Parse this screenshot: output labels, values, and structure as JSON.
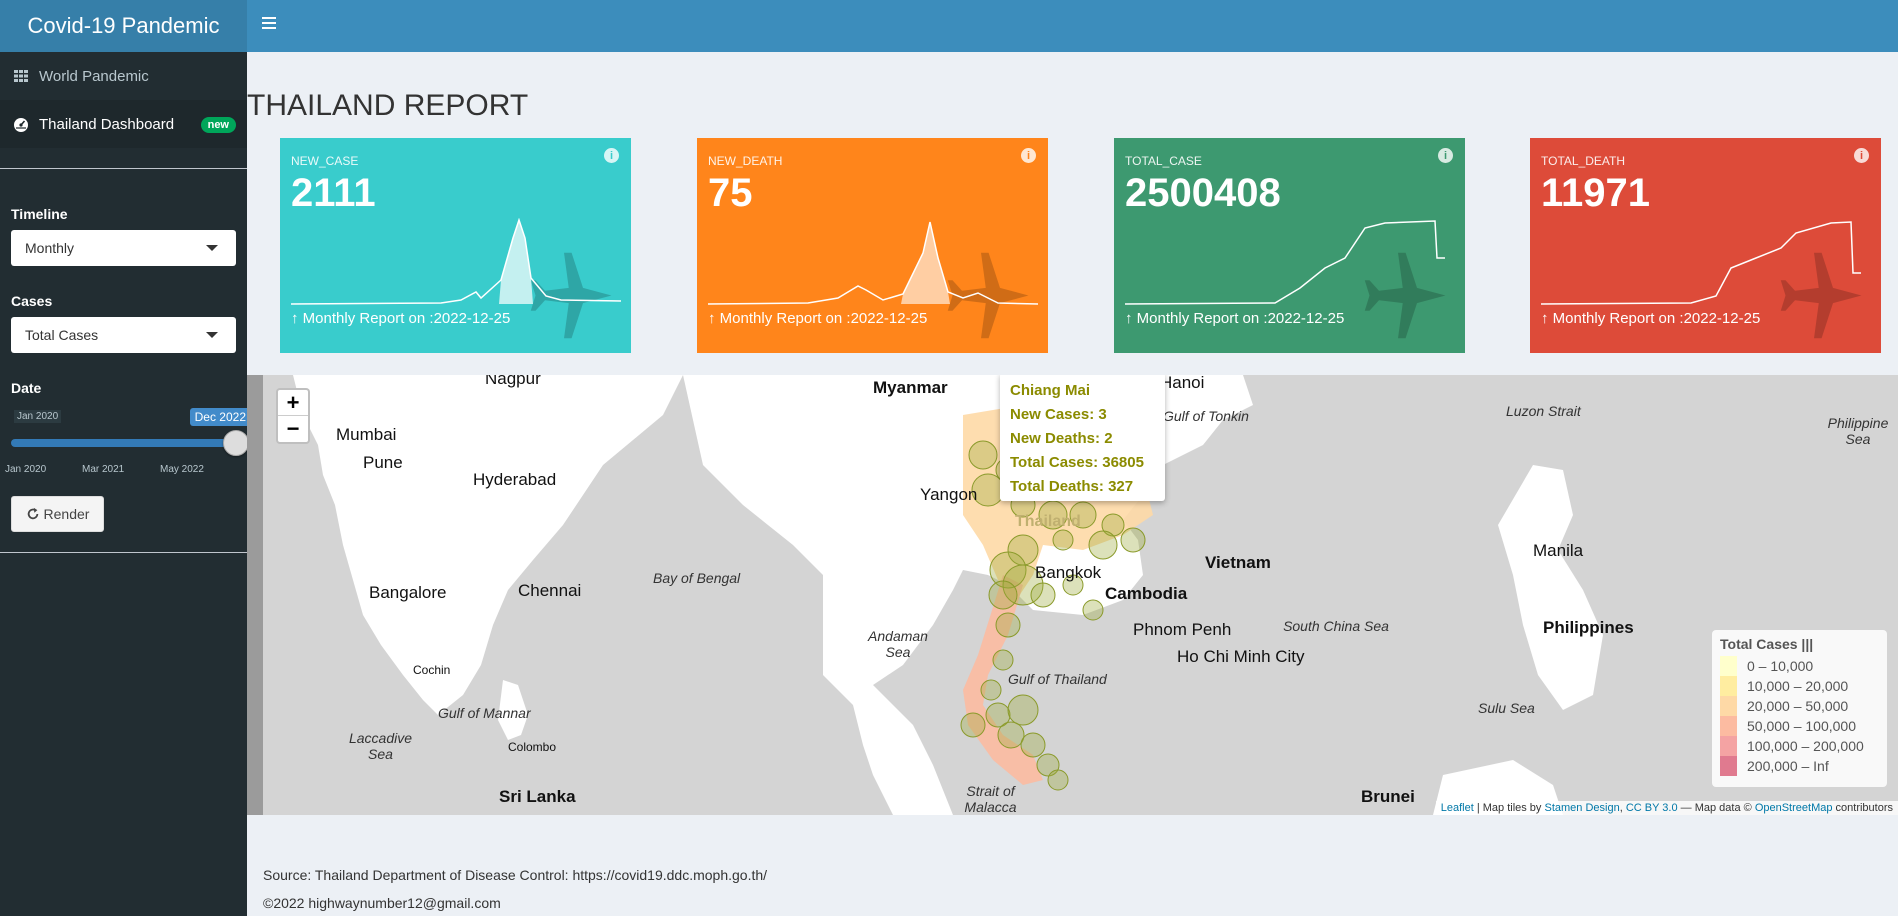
{
  "app": {
    "title": "Covid-19 Pandemic"
  },
  "sidebar": {
    "items": [
      {
        "label": "World Pandemic",
        "icon": "grid-icon"
      },
      {
        "label": "Thailand Dashboard",
        "icon": "dashboard-icon",
        "badge": "new"
      }
    ],
    "timeline": {
      "label": "Timeline",
      "value": "Monthly"
    },
    "cases": {
      "label": "Cases",
      "value": "Total Cases"
    },
    "date": {
      "label": "Date",
      "min_label": "Jan 2020",
      "current_label": "Dec 2022",
      "value_fraction": 1.0,
      "ticks": [
        "Jan 2020",
        "Mar 2021",
        "May 2022"
      ]
    },
    "render_label": "Render"
  },
  "main": {
    "title": "THAILAND REPORT",
    "boxes": [
      {
        "label": "NEW_CASE",
        "value": "2111",
        "footer": "↑ Monthly Report on :2022-12-25",
        "color": "#39cccc"
      },
      {
        "label": "NEW_DEATH",
        "value": "75",
        "footer": "↑ Monthly Report on :2022-12-25",
        "color": "#ff851b"
      },
      {
        "label": "TOTAL_CASE",
        "value": "2500408",
        "footer": "↑ Monthly Report on :2022-12-25",
        "color": "#3d9970"
      },
      {
        "label": "TOTAL_DEATH",
        "value": "11971",
        "footer": "↑ Monthly Report on :2022-12-25",
        "color": "#dd4b39"
      }
    ]
  },
  "map": {
    "zoom_in": "+",
    "zoom_out": "−",
    "places": {
      "myanmar": "Myanmar",
      "hanoi": "Hanoi",
      "gulf_tonkin": "Gulf of Tonkin",
      "luzon": "Luzon Strait",
      "philippine_sea": "Philippine Sea",
      "nagpur": "Nagpur",
      "mumbai": "Mumbai",
      "pune": "Pune",
      "hyderabad": "Hyderabad",
      "yangon": "Yangon",
      "thailand": "Thailand",
      "bangkok": "Bangkok",
      "vietnam": "Vietnam",
      "cambodia": "Cambodia",
      "manila": "Manila",
      "bay_bengal": "Bay of Bengal",
      "bangalore": "Bangalore",
      "chennai": "Chennai",
      "andaman": "Andaman Sea",
      "phnom_penh": "Phnom Penh",
      "hcmc": "Ho Chi Minh City",
      "south_china": "South China Sea",
      "philippines": "Philippines",
      "cochin": "Cochin",
      "gulf_thailand": "Gulf of Thailand",
      "gulf_mannar": "Gulf of Mannar",
      "sulu": "Sulu Sea",
      "laccadive": "Laccadive Sea",
      "colombo": "Colombo",
      "sri_lanka": "Sri Lanka",
      "malacca": "Strait of Malacca",
      "brunei": "Brunei"
    },
    "popup": {
      "province": "Chiang Mai",
      "new_cases": "New Cases: 3",
      "new_deaths": "New Deaths: 2",
      "total_cases": "Total Cases: 36805",
      "total_deaths": "Total Deaths: 327"
    },
    "legend": {
      "title": "Total Cases |||",
      "items": [
        {
          "label": "0 – 10,000",
          "color": "#ffffcc"
        },
        {
          "label": "10,000 – 20,000",
          "color": "#ffeda0"
        },
        {
          "label": "20,000 – 50,000",
          "color": "#fed9a6"
        },
        {
          "label": "50,000 – 100,000",
          "color": "#fcbba1"
        },
        {
          "label": "100,000 – 200,000",
          "color": "#f4a3a3"
        },
        {
          "label": "200,000 – Inf",
          "color": "#e07a8f"
        }
      ]
    },
    "attribution": {
      "leaflet": "Leaflet",
      "tiles_prefix": " | Map tiles by ",
      "stamen": "Stamen Design",
      "comma": ", ",
      "cc": "CC BY 3.0",
      "data_prefix": " — Map data © ",
      "osm": "OpenStreetMap",
      "suffix": " contributors"
    }
  },
  "footer": {
    "source": "Source: Thailand Department of Disease Control: https://covid19.ddc.moph.go.th/",
    "copyright": "©2022 highwaynumber12@gmail.com"
  }
}
